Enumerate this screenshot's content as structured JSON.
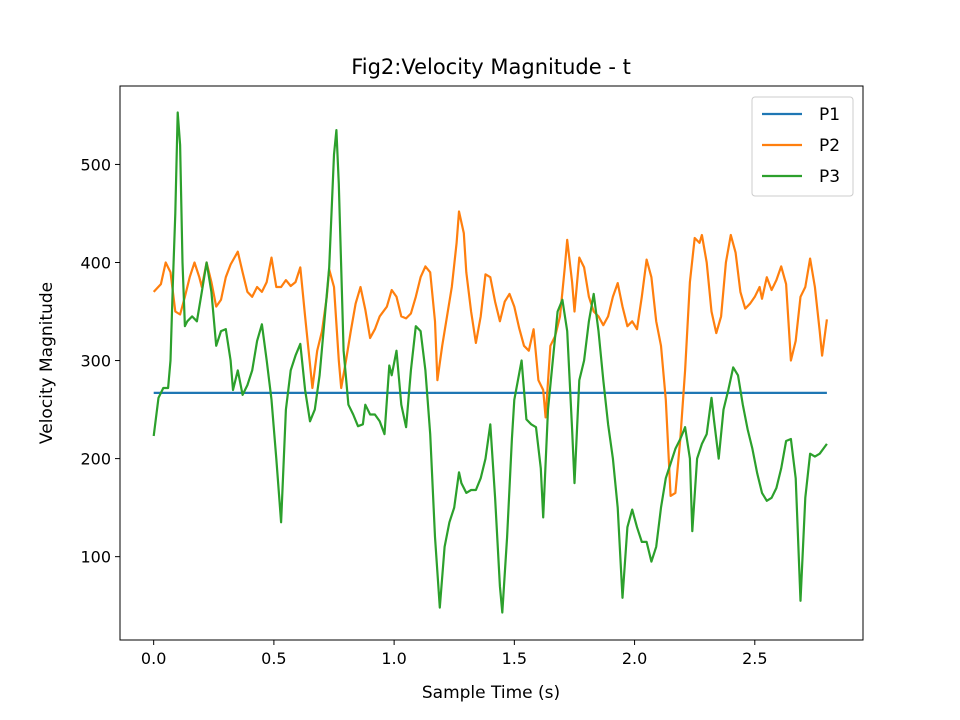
{
  "chart_data": {
    "type": "line",
    "title": "Fig2:Velocity Magnitude - t",
    "xlabel": "Sample Time (s)",
    "ylabel": "Velocity Magnitude",
    "xlim": [
      -0.14,
      2.95
    ],
    "ylim": [
      15,
      580
    ],
    "xticks": [
      0.0,
      0.5,
      1.0,
      1.5,
      2.0,
      2.5
    ],
    "xtick_labels": [
      "0.0",
      "0.5",
      "1.0",
      "1.5",
      "2.0",
      "2.5"
    ],
    "yticks": [
      100,
      200,
      300,
      400,
      500
    ],
    "ytick_labels": [
      "100",
      "200",
      "300",
      "400",
      "500"
    ],
    "grid": false,
    "legend_position": "top-right",
    "series": [
      {
        "name": "P1",
        "color": "#1f77b4",
        "points": [
          [
            0.0,
            267
          ],
          [
            2.8,
            267
          ]
        ]
      },
      {
        "name": "P2",
        "color": "#ff7f0e",
        "points": [
          [
            0.0,
            370
          ],
          [
            0.03,
            378
          ],
          [
            0.05,
            400
          ],
          [
            0.07,
            390
          ],
          [
            0.09,
            350
          ],
          [
            0.11,
            347
          ],
          [
            0.13,
            365
          ],
          [
            0.15,
            385
          ],
          [
            0.17,
            400
          ],
          [
            0.19,
            385
          ],
          [
            0.2,
            375
          ],
          [
            0.22,
            400
          ],
          [
            0.24,
            380
          ],
          [
            0.26,
            355
          ],
          [
            0.28,
            362
          ],
          [
            0.3,
            385
          ],
          [
            0.32,
            398
          ],
          [
            0.35,
            411
          ],
          [
            0.37,
            390
          ],
          [
            0.39,
            370
          ],
          [
            0.41,
            365
          ],
          [
            0.43,
            375
          ],
          [
            0.45,
            370
          ],
          [
            0.47,
            380
          ],
          [
            0.49,
            405
          ],
          [
            0.51,
            375
          ],
          [
            0.53,
            375
          ],
          [
            0.55,
            382
          ],
          [
            0.57,
            376
          ],
          [
            0.59,
            380
          ],
          [
            0.61,
            395
          ],
          [
            0.63,
            345
          ],
          [
            0.66,
            272
          ],
          [
            0.68,
            310
          ],
          [
            0.7,
            330
          ],
          [
            0.72,
            365
          ],
          [
            0.73,
            393
          ],
          [
            0.75,
            375
          ],
          [
            0.77,
            300
          ],
          [
            0.78,
            272
          ],
          [
            0.8,
            300
          ],
          [
            0.82,
            330
          ],
          [
            0.84,
            358
          ],
          [
            0.86,
            375
          ],
          [
            0.88,
            352
          ],
          [
            0.9,
            323
          ],
          [
            0.92,
            332
          ],
          [
            0.94,
            345
          ],
          [
            0.97,
            355
          ],
          [
            0.99,
            372
          ],
          [
            1.01,
            365
          ],
          [
            1.03,
            345
          ],
          [
            1.05,
            343
          ],
          [
            1.07,
            348
          ],
          [
            1.09,
            365
          ],
          [
            1.11,
            385
          ],
          [
            1.13,
            396
          ],
          [
            1.15,
            390
          ],
          [
            1.17,
            340
          ],
          [
            1.18,
            280
          ],
          [
            1.2,
            315
          ],
          [
            1.22,
            345
          ],
          [
            1.24,
            375
          ],
          [
            1.26,
            420
          ],
          [
            1.27,
            452
          ],
          [
            1.29,
            430
          ],
          [
            1.3,
            390
          ],
          [
            1.32,
            350
          ],
          [
            1.34,
            318
          ],
          [
            1.36,
            345
          ],
          [
            1.38,
            388
          ],
          [
            1.4,
            385
          ],
          [
            1.42,
            360
          ],
          [
            1.44,
            340
          ],
          [
            1.46,
            360
          ],
          [
            1.48,
            368
          ],
          [
            1.5,
            355
          ],
          [
            1.52,
            333
          ],
          [
            1.54,
            315
          ],
          [
            1.56,
            310
          ],
          [
            1.58,
            332
          ],
          [
            1.6,
            280
          ],
          [
            1.62,
            270
          ],
          [
            1.63,
            242
          ],
          [
            1.65,
            315
          ],
          [
            1.67,
            325
          ],
          [
            1.69,
            345
          ],
          [
            1.71,
            395
          ],
          [
            1.72,
            423
          ],
          [
            1.74,
            380
          ],
          [
            1.75,
            350
          ],
          [
            1.77,
            405
          ],
          [
            1.79,
            395
          ],
          [
            1.81,
            365
          ],
          [
            1.83,
            350
          ],
          [
            1.85,
            345
          ],
          [
            1.87,
            336
          ],
          [
            1.89,
            345
          ],
          [
            1.91,
            365
          ],
          [
            1.93,
            379
          ],
          [
            1.95,
            355
          ],
          [
            1.97,
            335
          ],
          [
            1.99,
            340
          ],
          [
            2.01,
            332
          ],
          [
            2.03,
            365
          ],
          [
            2.05,
            403
          ],
          [
            2.07,
            385
          ],
          [
            2.09,
            340
          ],
          [
            2.11,
            315
          ],
          [
            2.13,
            260
          ],
          [
            2.15,
            162
          ],
          [
            2.17,
            165
          ],
          [
            2.19,
            220
          ],
          [
            2.21,
            290
          ],
          [
            2.23,
            380
          ],
          [
            2.25,
            425
          ],
          [
            2.27,
            420
          ],
          [
            2.28,
            428
          ],
          [
            2.3,
            400
          ],
          [
            2.32,
            350
          ],
          [
            2.34,
            328
          ],
          [
            2.36,
            345
          ],
          [
            2.38,
            400
          ],
          [
            2.4,
            428
          ],
          [
            2.42,
            410
          ],
          [
            2.44,
            370
          ],
          [
            2.46,
            353
          ],
          [
            2.48,
            358
          ],
          [
            2.5,
            365
          ],
          [
            2.52,
            375
          ],
          [
            2.53,
            363
          ],
          [
            2.55,
            385
          ],
          [
            2.57,
            372
          ],
          [
            2.59,
            382
          ],
          [
            2.61,
            396
          ],
          [
            2.63,
            378
          ],
          [
            2.65,
            300
          ],
          [
            2.67,
            320
          ],
          [
            2.69,
            365
          ],
          [
            2.71,
            375
          ],
          [
            2.73,
            404
          ],
          [
            2.75,
            375
          ],
          [
            2.77,
            330
          ],
          [
            2.78,
            305
          ],
          [
            2.8,
            342
          ]
        ]
      },
      {
        "name": "P3",
        "color": "#2ca02c",
        "points": [
          [
            0.0,
            223
          ],
          [
            0.02,
            262
          ],
          [
            0.04,
            272
          ],
          [
            0.06,
            272
          ],
          [
            0.07,
            300
          ],
          [
            0.08,
            380
          ],
          [
            0.09,
            450
          ],
          [
            0.1,
            553
          ],
          [
            0.11,
            520
          ],
          [
            0.12,
            400
          ],
          [
            0.13,
            335
          ],
          [
            0.14,
            340
          ],
          [
            0.16,
            345
          ],
          [
            0.18,
            340
          ],
          [
            0.2,
            370
          ],
          [
            0.22,
            400
          ],
          [
            0.24,
            370
          ],
          [
            0.26,
            315
          ],
          [
            0.28,
            330
          ],
          [
            0.3,
            332
          ],
          [
            0.32,
            300
          ],
          [
            0.33,
            270
          ],
          [
            0.35,
            290
          ],
          [
            0.37,
            265
          ],
          [
            0.39,
            275
          ],
          [
            0.41,
            290
          ],
          [
            0.43,
            320
          ],
          [
            0.45,
            337
          ],
          [
            0.47,
            300
          ],
          [
            0.49,
            260
          ],
          [
            0.51,
            200
          ],
          [
            0.53,
            135
          ],
          [
            0.55,
            250
          ],
          [
            0.57,
            290
          ],
          [
            0.59,
            305
          ],
          [
            0.61,
            317
          ],
          [
            0.63,
            270
          ],
          [
            0.65,
            238
          ],
          [
            0.67,
            250
          ],
          [
            0.69,
            285
          ],
          [
            0.71,
            340
          ],
          [
            0.73,
            395
          ],
          [
            0.75,
            510
          ],
          [
            0.76,
            535
          ],
          [
            0.77,
            480
          ],
          [
            0.79,
            310
          ],
          [
            0.81,
            255
          ],
          [
            0.83,
            245
          ],
          [
            0.85,
            233
          ],
          [
            0.87,
            235
          ],
          [
            0.88,
            255
          ],
          [
            0.9,
            245
          ],
          [
            0.92,
            245
          ],
          [
            0.94,
            238
          ],
          [
            0.96,
            225
          ],
          [
            0.98,
            295
          ],
          [
            0.99,
            285
          ],
          [
            1.01,
            310
          ],
          [
            1.03,
            255
          ],
          [
            1.05,
            232
          ],
          [
            1.07,
            290
          ],
          [
            1.09,
            335
          ],
          [
            1.11,
            330
          ],
          [
            1.13,
            290
          ],
          [
            1.15,
            225
          ],
          [
            1.17,
            120
          ],
          [
            1.19,
            48
          ],
          [
            1.21,
            110
          ],
          [
            1.23,
            135
          ],
          [
            1.25,
            150
          ],
          [
            1.27,
            186
          ],
          [
            1.28,
            175
          ],
          [
            1.3,
            165
          ],
          [
            1.32,
            168
          ],
          [
            1.34,
            168
          ],
          [
            1.36,
            180
          ],
          [
            1.38,
            200
          ],
          [
            1.4,
            235
          ],
          [
            1.42,
            160
          ],
          [
            1.44,
            70
          ],
          [
            1.45,
            43
          ],
          [
            1.47,
            120
          ],
          [
            1.49,
            220
          ],
          [
            1.5,
            260
          ],
          [
            1.53,
            300
          ],
          [
            1.55,
            240
          ],
          [
            1.57,
            235
          ],
          [
            1.59,
            232
          ],
          [
            1.61,
            190
          ],
          [
            1.62,
            140
          ],
          [
            1.64,
            250
          ],
          [
            1.66,
            300
          ],
          [
            1.68,
            350
          ],
          [
            1.7,
            362
          ],
          [
            1.72,
            330
          ],
          [
            1.74,
            230
          ],
          [
            1.75,
            175
          ],
          [
            1.77,
            280
          ],
          [
            1.79,
            300
          ],
          [
            1.81,
            340
          ],
          [
            1.83,
            368
          ],
          [
            1.85,
            330
          ],
          [
            1.87,
            280
          ],
          [
            1.89,
            235
          ],
          [
            1.91,
            200
          ],
          [
            1.93,
            150
          ],
          [
            1.95,
            58
          ],
          [
            1.97,
            130
          ],
          [
            1.99,
            148
          ],
          [
            2.01,
            130
          ],
          [
            2.03,
            115
          ],
          [
            2.05,
            115
          ],
          [
            2.07,
            95
          ],
          [
            2.09,
            110
          ],
          [
            2.11,
            150
          ],
          [
            2.13,
            180
          ],
          [
            2.15,
            195
          ],
          [
            2.17,
            210
          ],
          [
            2.19,
            220
          ],
          [
            2.21,
            232
          ],
          [
            2.23,
            200
          ],
          [
            2.24,
            126
          ],
          [
            2.26,
            200
          ],
          [
            2.28,
            215
          ],
          [
            2.3,
            225
          ],
          [
            2.32,
            262
          ],
          [
            2.33,
            240
          ],
          [
            2.35,
            200
          ],
          [
            2.37,
            250
          ],
          [
            2.39,
            270
          ],
          [
            2.41,
            293
          ],
          [
            2.43,
            285
          ],
          [
            2.45,
            255
          ],
          [
            2.47,
            230
          ],
          [
            2.49,
            210
          ],
          [
            2.51,
            185
          ],
          [
            2.53,
            165
          ],
          [
            2.55,
            157
          ],
          [
            2.57,
            160
          ],
          [
            2.59,
            170
          ],
          [
            2.61,
            190
          ],
          [
            2.63,
            218
          ],
          [
            2.65,
            220
          ],
          [
            2.67,
            180
          ],
          [
            2.69,
            55
          ],
          [
            2.71,
            160
          ],
          [
            2.73,
            205
          ],
          [
            2.75,
            202
          ],
          [
            2.77,
            205
          ],
          [
            2.8,
            215
          ]
        ]
      }
    ]
  }
}
